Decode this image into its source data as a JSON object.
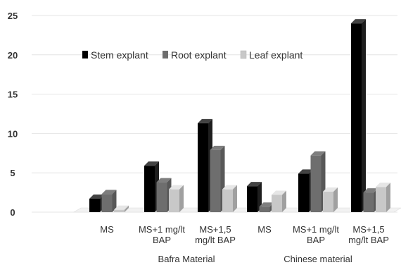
{
  "chart_data": {
    "type": "bar",
    "title": "",
    "xlabel": "",
    "ylabel": "",
    "ylim": [
      0,
      25
    ],
    "yticks": [
      0,
      5,
      10,
      15,
      20,
      25
    ],
    "grid": true,
    "legend_position": "top-left",
    "categories": [
      "MS",
      "MS+1 mg/lt BAP",
      "MS+1,5 mg/lt BAP",
      "MS",
      "MS+1 mg/lt BAP",
      "MS+1,5 mg/lt BAP"
    ],
    "category_lines": [
      [
        "MS"
      ],
      [
        "MS+1 mg/lt",
        "BAP"
      ],
      [
        "MS+1,5",
        "mg/lt BAP"
      ],
      [
        "MS"
      ],
      [
        "MS+1 mg/lt",
        "BAP"
      ],
      [
        "MS+1,5",
        "mg/lt BAP"
      ]
    ],
    "groups": [
      {
        "name": "Bafra Material",
        "start": 0,
        "end": 2
      },
      {
        "name": "Chinese material",
        "start": 3,
        "end": 5
      }
    ],
    "series": [
      {
        "name": "Stem explant",
        "color": "#000000",
        "values": [
          1.7,
          5.9,
          11.3,
          3.3,
          4.9,
          24.0
        ]
      },
      {
        "name": "Root explant",
        "color": "#6e6e6e",
        "values": [
          2.3,
          3.8,
          7.9,
          0.7,
          7.2,
          2.5
        ]
      },
      {
        "name": "Leaf explant",
        "color": "#c8c8c8",
        "values": [
          0.3,
          2.9,
          2.9,
          2.2,
          2.6,
          3.2
        ]
      }
    ]
  }
}
